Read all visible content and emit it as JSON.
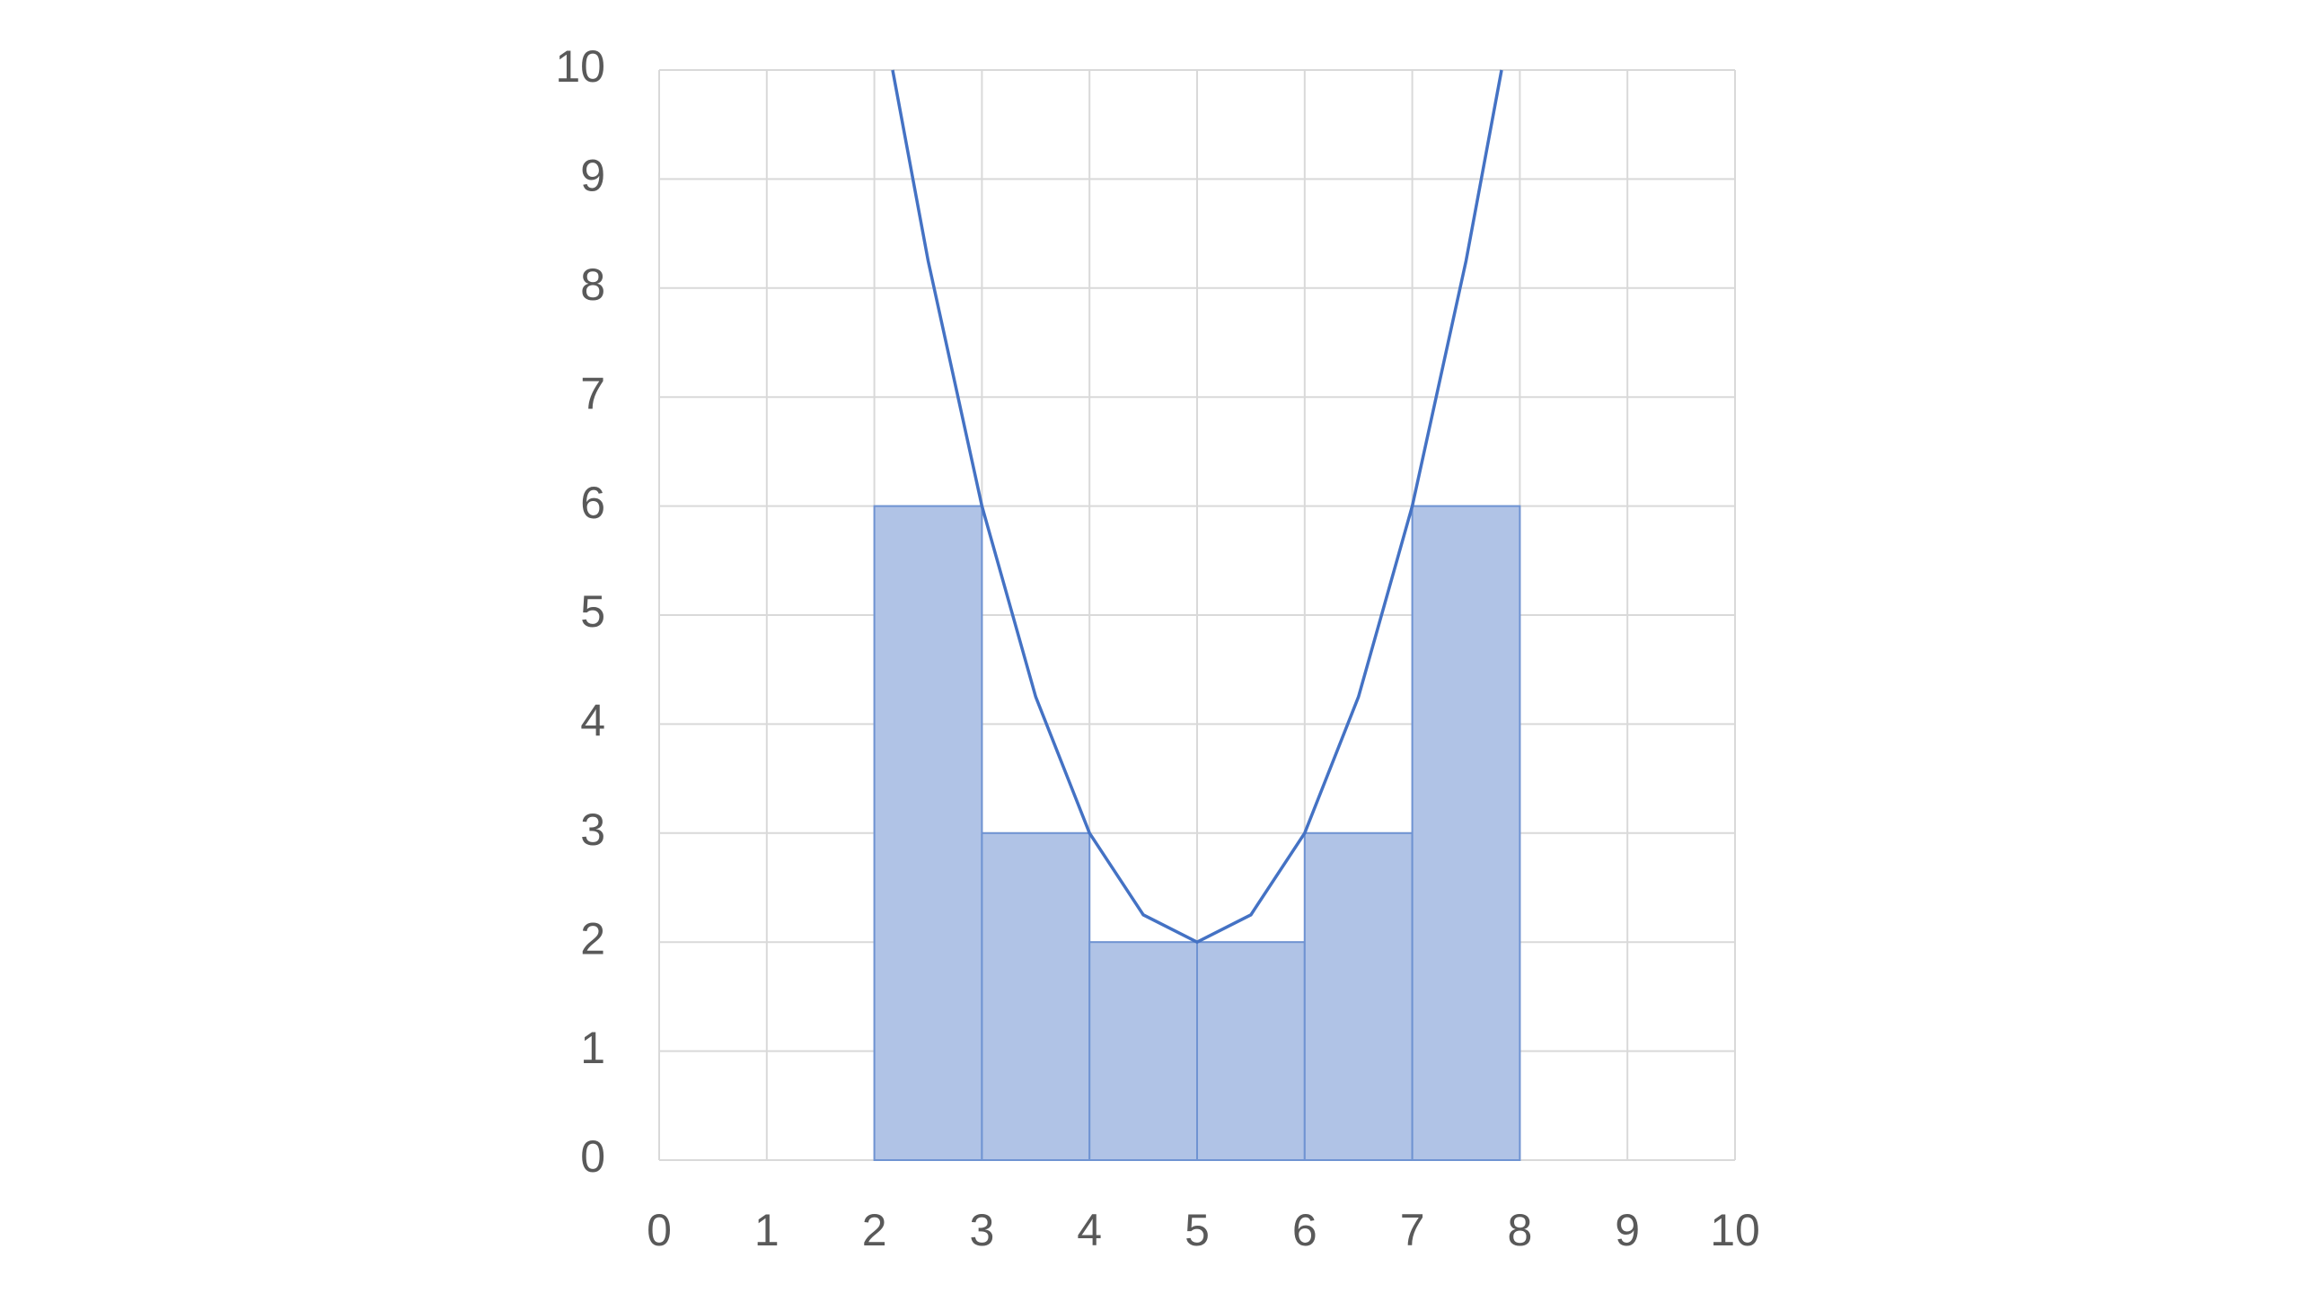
{
  "chart_data": {
    "type": "histogram",
    "bins": [
      2,
      3,
      4,
      5,
      6,
      7,
      8
    ],
    "values": [
      6,
      3,
      2,
      2,
      3,
      6
    ],
    "color": "#b0c3e6",
    "edge_color": "#6f93d2",
    "curve": {
      "type": "line",
      "color": "#4472c4",
      "x": [
        2.17,
        2.5,
        3,
        3.5,
        4,
        4.5,
        5,
        5.5,
        6,
        6.5,
        7,
        7.5,
        7.83
      ],
      "values": [
        10,
        8.25,
        6,
        4.25,
        3,
        2.25,
        2,
        2.25,
        3,
        4.25,
        6,
        8.25,
        10
      ]
    },
    "xlim": [
      0,
      10
    ],
    "ylim": [
      0,
      10
    ],
    "xticks": [
      0,
      1,
      2,
      3,
      4,
      5,
      6,
      7,
      8,
      9,
      10
    ],
    "yticks": [
      0,
      1,
      2,
      3,
      4,
      5,
      6,
      7,
      8,
      9,
      10
    ],
    "grid": true
  }
}
